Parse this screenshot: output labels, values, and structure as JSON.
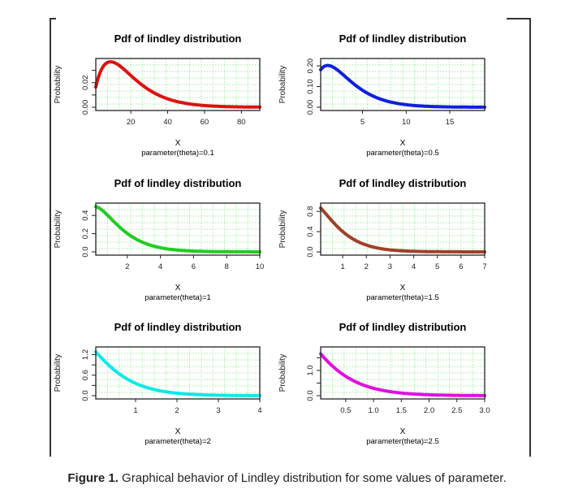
{
  "caption": {
    "label": "Figure 1.",
    "text": " Graphical behavior of Lindley distribution for some values of parameter."
  },
  "chart_data": [
    {
      "type": "line",
      "title": "Pdf of lindley distribution",
      "xlabel": "X",
      "sublabel": "parameter(theta)=0.1",
      "ylabel": "Probability",
      "theta": 0.1,
      "color": "#e01010",
      "xlim": [
        1,
        90
      ],
      "ylim": [
        0,
        0.037
      ],
      "xticks": [
        20,
        40,
        60,
        80
      ],
      "xticklabels": [
        "20",
        "40",
        "60",
        "80"
      ],
      "yticks": [
        0,
        0.02
      ],
      "yticklabels": [
        "0.00",
        "0.02"
      ],
      "yminor": [
        0.01,
        0.03
      ],
      "grid": true
    },
    {
      "type": "line",
      "title": "Pdf of lindley distribution",
      "xlabel": "X",
      "sublabel": "parameter(theta)=0.5",
      "ylabel": "Probability",
      "theta": 0.5,
      "color": "#1020e0",
      "xlim": [
        0.2,
        19
      ],
      "ylim": [
        0,
        0.22
      ],
      "xticks": [
        5,
        10,
        15
      ],
      "xticklabels": [
        "5",
        "10",
        "15"
      ],
      "yticks": [
        0,
        0.1,
        0.2
      ],
      "yticklabels": [
        "0.00",
        "0.10",
        "0.20"
      ],
      "yminor": [],
      "grid": true
    },
    {
      "type": "line",
      "title": "Pdf of lindley distribution",
      "xlabel": "X",
      "sublabel": "parameter(theta)=1",
      "ylabel": "Probability",
      "theta": 1,
      "color": "#22cc22",
      "xlim": [
        0.1,
        10
      ],
      "ylim": [
        0,
        0.5
      ],
      "xticks": [
        2,
        4,
        6,
        8,
        10
      ],
      "xticklabels": [
        "2",
        "4",
        "6",
        "8",
        "10"
      ],
      "yticks": [
        0,
        0.2,
        0.4
      ],
      "yticklabels": [
        "0.0",
        "0.2",
        "0.4"
      ],
      "yminor": [],
      "grid": true
    },
    {
      "type": "line",
      "title": "Pdf of lindley distribution",
      "xlabel": "X",
      "sublabel": "parameter(theta)=1.5",
      "ylabel": "Probability",
      "theta": 1.5,
      "color": "#a0402a",
      "xlim": [
        0.07,
        7
      ],
      "ylim": [
        0,
        0.9
      ],
      "xticks": [
        1,
        2,
        3,
        4,
        5,
        6,
        7
      ],
      "xticklabels": [
        "1",
        "2",
        "3",
        "4",
        "5",
        "6",
        "7"
      ],
      "yticks": [
        0,
        0.4,
        0.8
      ],
      "yticklabels": [
        "0.0",
        "0.4",
        "0.8"
      ],
      "yminor": [],
      "grid": true
    },
    {
      "type": "line",
      "title": "Pdf of lindley distribution",
      "xlabel": "X",
      "sublabel": "parameter(theta)=2",
      "ylabel": "Probability",
      "theta": 2,
      "color": "#10e8e8",
      "xlim": [
        0.04,
        4
      ],
      "ylim": [
        0,
        1.33
      ],
      "xticks": [
        1,
        2,
        3,
        4
      ],
      "xticklabels": [
        "1",
        "2",
        "3",
        "4"
      ],
      "yticks": [
        0,
        0.6,
        1.2
      ],
      "yticklabels": [
        "0.0",
        "0.6",
        "1.2"
      ],
      "yminor": [
        0.3,
        0.9
      ],
      "grid": true
    },
    {
      "type": "line",
      "title": "Pdf of lindley distribution",
      "xlabel": "X",
      "sublabel": "parameter(theta)=2.5",
      "ylabel": "Probability",
      "theta": 2.5,
      "color": "#e010e0",
      "xlim": [
        0.05,
        3
      ],
      "ylim": [
        0,
        1.8
      ],
      "xticks": [
        0.5,
        1,
        1.5,
        2,
        2.5,
        3
      ],
      "xticklabels": [
        "0.5",
        "1.0",
        "1.5",
        "2.0",
        "2.5",
        "3.0"
      ],
      "yticks": [
        0,
        1
      ],
      "yticklabels": [
        "0.0",
        "1.0"
      ],
      "yminor": [
        0.5,
        1.5
      ],
      "grid": true
    }
  ]
}
